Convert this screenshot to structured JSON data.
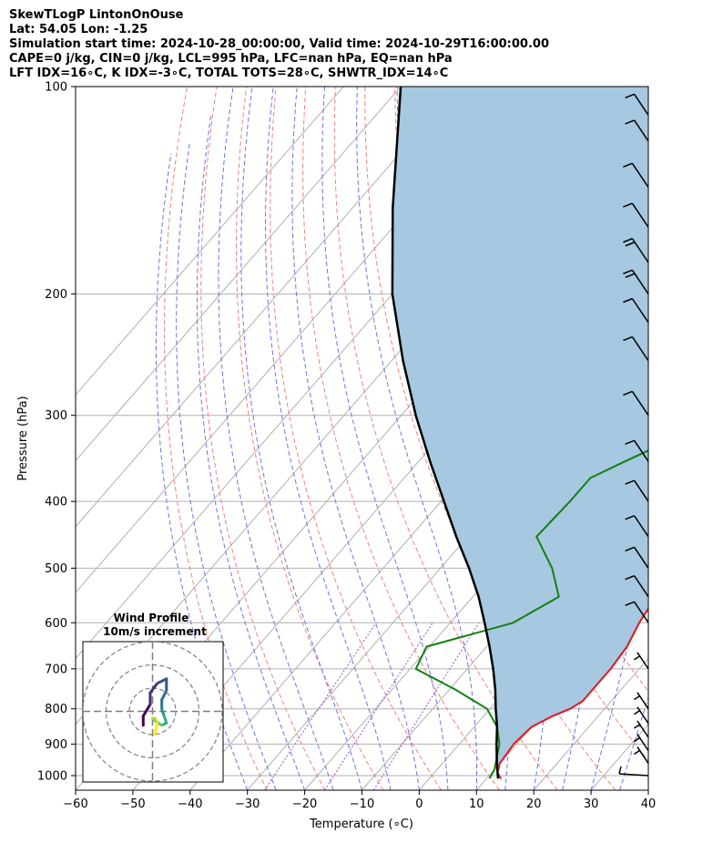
{
  "header": {
    "line1": "SkewTLogP LintonOnOuse",
    "line2": "Lat: 54.05   Lon: -1.25",
    "line3": "Simulation start time: 2024-10-28_00:00:00, Valid time: 2024-10-29T16:00:00.00",
    "line4": "CAPE=0 j/kg, CIN=0 j/kg, LCL=995 hPa, LFC=nan hPa, EQ=nan hPa",
    "line5": "LFT IDX=16∘C, K IDX=-3∘C, TOTAL TOTS=28∘C, SHWTR_IDX=14∘C"
  },
  "inset": {
    "title": "Wind Profile",
    "subtitle": "10m/s increment"
  },
  "colors": {
    "temperature": "#e8141c",
    "dewpoint": "#128012",
    "parcel": "#000000",
    "fill": "#a6c8e0",
    "isotherm": "#b0b0b0",
    "dry_adiabat": "#f08080",
    "moist_adiabat": "#7070f0",
    "mixing_ratio": "#a050d0"
  },
  "chart_data": {
    "type": "line",
    "title": "",
    "xlabel": "Temperature (∘C)",
    "ylabel": "Pressure (hPa)",
    "xlim": [
      -60,
      40
    ],
    "ylim": [
      1050,
      100
    ],
    "y_scale": "log",
    "skew": true,
    "grid": true,
    "x_ticks": [
      "−60",
      "−50",
      "−40",
      "−30",
      "−20",
      "−10",
      "0",
      "10",
      "20",
      "30",
      "40"
    ],
    "y_ticks": [
      "100",
      "200",
      "300",
      "400",
      "500",
      "600",
      "700",
      "800",
      "900",
      "1000"
    ],
    "series": [
      {
        "key": "temperature",
        "pressure": [
          1010,
          990,
          960,
          900,
          850,
          820,
          800,
          780,
          700,
          650,
          600,
          550,
          500,
          450,
          400,
          350,
          320,
          300,
          265,
          240,
          220,
          200,
          180,
          160,
          150,
          140,
          130,
          120,
          110,
          100
        ],
        "values": [
          12.5,
          11.0,
          10.0,
          9.5,
          10.0,
          12.0,
          14.0,
          15.0,
          15.0,
          14.5,
          13.0,
          12.0,
          10.0,
          6.5,
          2.0,
          -3.0,
          -5.5,
          -6.5,
          -9.0,
          -9.0,
          -10.0,
          -12.0,
          -12.0,
          -12.5,
          -12.5,
          -12.0,
          -11.5,
          -12.0,
          -12.0,
          -11.0
        ]
      },
      {
        "key": "dewpoint",
        "pressure": [
          1010,
          980,
          900,
          850,
          800,
          750,
          700,
          650,
          600,
          550,
          500,
          450,
          400,
          370,
          350,
          330,
          300,
          280,
          250,
          230,
          210,
          190,
          170,
          150,
          140,
          130,
          120,
          110,
          100
        ],
        "values": [
          10.5,
          10.0,
          7.0,
          4.0,
          -0.5,
          -9.0,
          -19.0,
          -20.5,
          -9.0,
          -5.0,
          -10.5,
          -18.0,
          -17.5,
          -17.5,
          -14.0,
          -10.0,
          -11.5,
          -13.5,
          -18.5,
          -21.5,
          -23.5,
          -27.0,
          -29.5,
          -34.0,
          -36.0,
          -37.5,
          -36.0,
          -35.0,
          -34.0
        ]
      },
      {
        "key": "parcel",
        "pressure": [
          1010,
          990,
          950,
          900,
          850,
          800,
          750,
          700,
          650,
          600,
          550,
          500,
          450,
          400,
          350,
          300,
          250,
          200,
          150,
          100
        ],
        "values": [
          12.0,
          11.0,
          9.0,
          6.5,
          4.0,
          1.0,
          -2.0,
          -5.5,
          -9.5,
          -14.0,
          -19.0,
          -25.0,
          -32.0,
          -39.5,
          -48.0,
          -57.5,
          -68.0,
          -80.0,
          -93.0,
          -110.0
        ]
      }
    ],
    "wind_barbs": {
      "pressure": [
        1000,
        960,
        920,
        880,
        840,
        800,
        700,
        600,
        550,
        500,
        450,
        400,
        350,
        300,
        250,
        220,
        200,
        180,
        160,
        140,
        120,
        110
      ],
      "kind": [
        "calm",
        "short",
        "short",
        "short",
        "short",
        "short",
        "short",
        "full",
        "full",
        "full",
        "full",
        "full",
        "full",
        "longfull",
        "longfull",
        "longfull",
        "double",
        "double",
        "longfull",
        "longfull",
        "full",
        "full"
      ]
    },
    "hodograph": {
      "rings_ms": [
        10,
        20,
        30
      ],
      "u": [
        -4,
        -4,
        -1,
        -1,
        2,
        6,
        6,
        4,
        4,
        5,
        6,
        4,
        1,
        0,
        1,
        2,
        1
      ],
      "v": [
        6,
        2,
        -3,
        -8,
        -12,
        -14,
        -9,
        -5,
        -1,
        2,
        5,
        6,
        4,
        3,
        3,
        5,
        10
      ]
    }
  }
}
